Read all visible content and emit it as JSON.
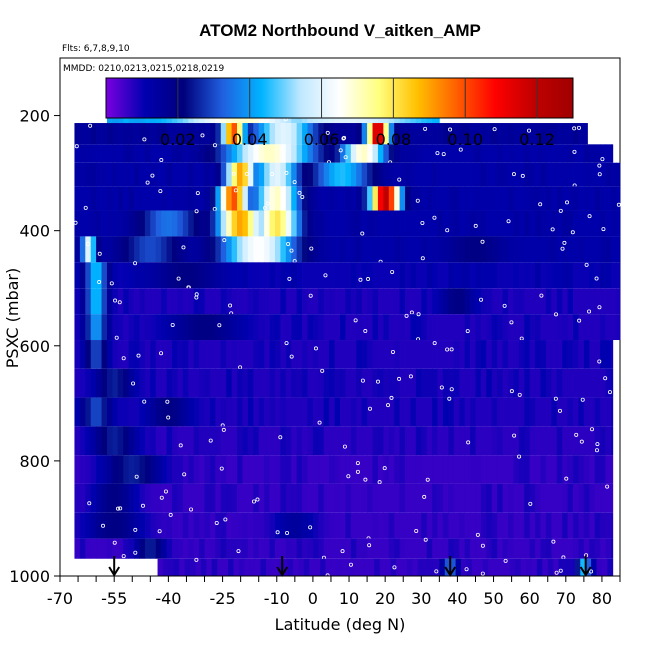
{
  "chart_data": {
    "type": "heatmap",
    "title": "ATOM2 Northbound V_aitken_AMP",
    "flights_label": "Flts: 6,7,8,9,10",
    "mmdd_label": "MMDD: 0210,0213,0215,0218,0219",
    "xlabel": "Latitude (deg N)",
    "ylabel": "PSXC (mbar)",
    "xlim": [
      -70,
      85
    ],
    "ylim": [
      1000,
      100
    ],
    "x_ticks": [
      -70,
      -55,
      -40,
      -25,
      -10,
      0,
      10,
      20,
      30,
      40,
      50,
      60,
      70,
      80
    ],
    "x_tick_labels": [
      "-70",
      "-55",
      "-40",
      "-25",
      "-10",
      "0",
      "10",
      "20",
      "30",
      "40",
      "50",
      "60",
      "70",
      "80"
    ],
    "y_ticks": [
      200,
      400,
      600,
      800,
      1000
    ],
    "y_tick_labels": [
      "200",
      "400",
      "600",
      "800",
      "1000"
    ],
    "colorbar": {
      "range": [
        0.0,
        0.13
      ],
      "ticks": [
        0.02,
        0.04,
        0.06,
        0.08,
        0.1,
        0.12
      ],
      "tick_labels": [
        "0.02",
        "0.04",
        "0.06",
        "0.08",
        "0.10",
        "0.12"
      ],
      "colors": [
        "#7a00e0",
        "#0000b0",
        "#00007c",
        "#2060e0",
        "#00b4ff",
        "#bfe8ff",
        "#ffffff",
        "#ffff80",
        "#ffc000",
        "#ff6000",
        "#ff0000",
        "#c00000",
        "#a00000"
      ]
    },
    "profile_markers_lat": [
      -55,
      -8.5,
      38,
      75.5
    ],
    "layers": [
      {
        "p_top": 170,
        "p_bot": 213,
        "lat_start": -57,
        "lat_end": 35,
        "base": 0.04,
        "features": [
          [
            -20,
            0.07,
            15
          ],
          [
            10,
            0.06,
            18
          ]
        ]
      },
      {
        "p_top": 213,
        "p_bot": 250,
        "lat_start": -66,
        "lat_end": 76,
        "base": 0.015,
        "features": [
          [
            -22,
            0.1,
            3
          ],
          [
            -8,
            0.06,
            8
          ],
          [
            18,
            0.12,
            3
          ]
        ]
      },
      {
        "p_top": 250,
        "p_bot": 282,
        "lat_start": -66,
        "lat_end": 83,
        "base": 0.012,
        "features": [
          [
            -12,
            0.07,
            12
          ],
          [
            14,
            0.07,
            6
          ]
        ]
      },
      {
        "p_top": 282,
        "p_bot": 323,
        "lat_start": -66,
        "lat_end": 85,
        "base": 0.012,
        "features": [
          [
            -20,
            0.09,
            4
          ],
          [
            -10,
            0.06,
            6
          ],
          [
            8,
            0.045,
            8
          ]
        ]
      },
      {
        "p_top": 323,
        "p_bot": 365,
        "lat_start": -66,
        "lat_end": 85,
        "base": 0.012,
        "features": [
          [
            -22,
            0.1,
            4
          ],
          [
            -10,
            0.07,
            6
          ],
          [
            20,
            0.12,
            4
          ]
        ]
      },
      {
        "p_top": 365,
        "p_bot": 410,
        "lat_start": -66,
        "lat_end": 85,
        "base": 0.012,
        "features": [
          [
            -20,
            0.09,
            6
          ],
          [
            -10,
            0.08,
            6
          ],
          [
            -40,
            0.035,
            8
          ]
        ]
      },
      {
        "p_top": 410,
        "p_bot": 455,
        "lat_start": -66,
        "lat_end": 85,
        "base": 0.012,
        "features": [
          [
            -62,
            0.06,
            2
          ],
          [
            -15,
            0.065,
            10
          ],
          [
            -45,
            0.03,
            8
          ],
          [
            45,
            0.02,
            8
          ]
        ]
      },
      {
        "p_top": 455,
        "p_bot": 500,
        "lat_start": -66,
        "lat_end": 85,
        "base": 0.01,
        "features": [
          [
            -60,
            0.045,
            3
          ],
          [
            -35,
            0.02,
            10
          ]
        ]
      },
      {
        "p_top": 500,
        "p_bot": 545,
        "lat_start": -66,
        "lat_end": 85,
        "base": 0.008,
        "features": [
          [
            -60,
            0.045,
            3
          ],
          [
            40,
            0.02,
            5
          ]
        ]
      },
      {
        "p_top": 545,
        "p_bot": 590,
        "lat_start": -66,
        "lat_end": 85,
        "base": 0.008,
        "features": [
          [
            -60,
            0.04,
            3
          ],
          [
            -30,
            0.02,
            10
          ]
        ]
      },
      {
        "p_top": 590,
        "p_bot": 640,
        "lat_start": -66,
        "lat_end": 83,
        "base": 0.008,
        "features": [
          [
            -60,
            0.03,
            3
          ]
        ]
      },
      {
        "p_top": 640,
        "p_bot": 690,
        "lat_start": -66,
        "lat_end": 83,
        "base": 0.008,
        "features": [
          [
            -55,
            0.025,
            5
          ]
        ]
      },
      {
        "p_top": 690,
        "p_bot": 740,
        "lat_start": -66,
        "lat_end": 83,
        "base": 0.008,
        "features": [
          [
            -60,
            0.03,
            4
          ],
          [
            -40,
            0.02,
            6
          ]
        ]
      },
      {
        "p_top": 740,
        "p_bot": 790,
        "lat_start": -66,
        "lat_end": 83,
        "base": 0.007,
        "features": [
          [
            -55,
            0.025,
            6
          ]
        ]
      },
      {
        "p_top": 790,
        "p_bot": 840,
        "lat_start": -66,
        "lat_end": 83,
        "base": 0.006,
        "features": [
          [
            -50,
            0.025,
            8
          ]
        ]
      },
      {
        "p_top": 840,
        "p_bot": 890,
        "lat_start": -66,
        "lat_end": 83,
        "base": 0.006,
        "features": [
          [
            -55,
            0.02,
            6
          ]
        ]
      },
      {
        "p_top": 890,
        "p_bot": 935,
        "lat_start": -66,
        "lat_end": 83,
        "base": 0.006,
        "features": [
          [
            -55,
            0.02,
            8
          ],
          [
            -5,
            0.015,
            6
          ]
        ]
      },
      {
        "p_top": 935,
        "p_bot": 970,
        "lat_start": -66,
        "lat_end": 83,
        "base": 0.006,
        "features": [
          [
            -45,
            0.025,
            4
          ]
        ]
      },
      {
        "p_top": 970,
        "p_bot": 1000,
        "lat_start": -43,
        "lat_end": 83,
        "base": 0.006,
        "features": [
          [
            38,
            0.035,
            2
          ],
          [
            75,
            0.045,
            2
          ]
        ]
      }
    ]
  }
}
